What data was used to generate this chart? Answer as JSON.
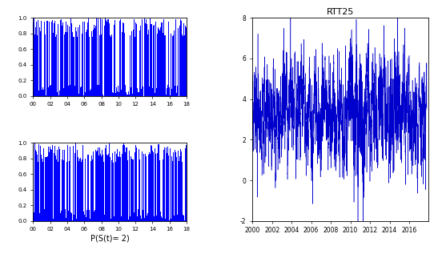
{
  "title_bottom": "P(S(t)= 2)",
  "title_right": "RTT25",
  "bar_color": "#0000FF",
  "line_color": "#0000CC",
  "background": "#FFFFFF",
  "ylim_prob": [
    0.0,
    1.0
  ],
  "ylim_rtt": [
    -2,
    8
  ],
  "yticks_prob": [
    0.0,
    0.2,
    0.4,
    0.6,
    0.8,
    1.0
  ],
  "ytick_labels_prob": [
    "0.0",
    "0.2",
    "0.4",
    "0.6",
    "0.8",
    "1.0"
  ],
  "yticks_rtt": [
    -2,
    0,
    2,
    4,
    6,
    8
  ],
  "ytick_labels_rtt": [
    "-2",
    "0",
    "2",
    "4",
    "6",
    "8"
  ],
  "xticks_prob": [
    2000,
    2002,
    2004,
    2006,
    2008,
    2010,
    2012,
    2014,
    2016,
    2018
  ],
  "xtick_labels_prob": [
    "00",
    "02",
    "04",
    "06",
    "08",
    "10",
    "12",
    "14",
    "16",
    "18"
  ],
  "xticks_rtt": [
    2000,
    2002,
    2004,
    2006,
    2008,
    2010,
    2012,
    2014,
    2016
  ],
  "xtick_labels_rtt": [
    "2000",
    "2002",
    "2004",
    "2006",
    "2008",
    "2010",
    "2012",
    "2014",
    "2016"
  ],
  "n_prob": 950,
  "n_rtt": 4500,
  "seed1": 10,
  "seed2": 20,
  "seed_rtt": 5
}
